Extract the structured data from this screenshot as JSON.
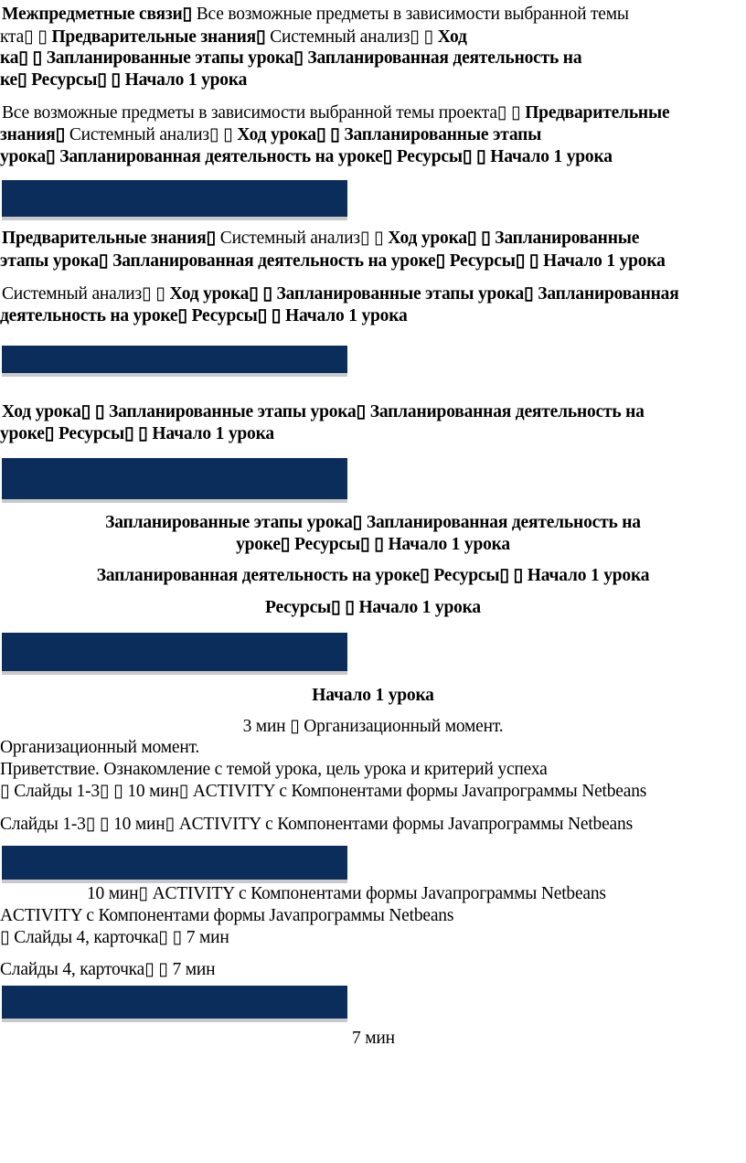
{
  "colors": {
    "banner": "#0b2d5c",
    "text": "#000000"
  },
  "lines": [
    {
      "s": [
        {
          "t": "Межпредметные связи▯",
          "b": true
        },
        {
          "t": " Все возможные предметы в зависимости выбранной темы",
          "b": false
        }
      ]
    },
    {
      "s": [
        {
          "t": "кта▯ ▯ ",
          "b": false
        },
        {
          "t": "Предварительные знания▯",
          "b": true
        },
        {
          "t": " Системный анализ▯ ▯ ",
          "b": false
        },
        {
          "t": "Ход",
          "b": true
        }
      ]
    },
    {
      "s": [
        {
          "t": "ка▯ ▯ Запланированные этапы урока▯ Запланированная деятельность на",
          "b": true
        }
      ]
    },
    {
      "s": [
        {
          "t": "ке▯ Ресурсы▯ ▯ Начало 1 урока",
          "b": true
        }
      ]
    },
    {
      "s": [
        {
          "t": "Все возможные предметы в зависимости выбранной темы проекта▯ ▯ ",
          "b": false
        },
        {
          "t": "Предварительные",
          "b": true
        }
      ]
    },
    {
      "s": [
        {
          "t": "знания▯",
          "b": true
        },
        {
          "t": " Системный анализ▯ ▯ ",
          "b": false
        },
        {
          "t": "Ход урока▯ ▯ Запланированные этапы",
          "b": true
        }
      ]
    },
    {
      "s": [
        {
          "t": "урока▯ Запланированная деятельность на уроке▯ Ресурсы▯ ▯ Начало 1 урока",
          "b": true
        }
      ]
    },
    {
      "s": [
        {
          "t": "Предварительные знания▯",
          "b": true
        },
        {
          "t": " Системный анализ▯ ▯ ",
          "b": false
        },
        {
          "t": "Ход урока▯ ▯ Запланированные",
          "b": true
        }
      ]
    },
    {
      "s": [
        {
          "t": "этапы урока▯ Запланированная деятельность на уроке▯ Ресурсы▯ ▯ Начало 1 урока",
          "b": true
        }
      ]
    },
    {
      "s": [
        {
          "t": "Системный анализ▯ ▯ ",
          "b": false
        },
        {
          "t": "Ход урока▯ ▯ Запланированные этапы урока▯ Запланированная",
          "b": true
        }
      ]
    },
    {
      "s": [
        {
          "t": "деятельность на уроке▯ Ресурсы▯ ▯ Начало 1 урока",
          "b": true
        }
      ]
    },
    {
      "s": [
        {
          "t": "Ход урока▯ ▯ Запланированные этапы урока▯ Запланированная деятельность на",
          "b": true
        }
      ]
    },
    {
      "s": [
        {
          "t": "уроке▯ Ресурсы▯ ▯ Начало 1 урока",
          "b": true
        }
      ]
    },
    {
      "s": [
        {
          "t": "Запланированные этапы урока▯ Запланированная деятельность на",
          "b": true
        }
      ]
    },
    {
      "s": [
        {
          "t": "уроке▯ Ресурсы▯ ▯ Начало 1 урока",
          "b": true
        }
      ]
    },
    {
      "s": [
        {
          "t": "Запланированная деятельность на уроке▯ Ресурсы▯ ▯ Начало 1 урока",
          "b": true
        }
      ]
    },
    {
      "s": [
        {
          "t": "Ресурсы▯ ▯ Начало 1 урока",
          "b": true
        }
      ]
    },
    {
      "s": [
        {
          "t": "Начало 1 урока",
          "b": true
        }
      ]
    },
    {
      "s": [
        {
          "t": "3 мин  ▯ Организационный  момент.",
          "b": false
        }
      ]
    },
    {
      "s": [
        {
          "t": "Организационный  момент.",
          "b": false
        }
      ]
    },
    {
      "s": [
        {
          "t": "Приветствие. Ознакомление с темой урока, цель урока и критерий успеха",
          "b": false
        }
      ]
    },
    {
      "s": [
        {
          "t": "▯ Слайды 1-3▯ ▯ 10 мин▯ ACTIVITY с Компонентами формы Javaпрограммы Netbeans",
          "b": false
        }
      ]
    },
    {
      "s": [
        {
          "t": "Слайды 1-3▯ ▯ 10 мин▯ ACTIVITY с Компонентами формы Javaпрограммы Netbeans",
          "b": false
        }
      ]
    },
    {
      "s": [
        {
          "t": "10 мин▯ ACTIVITY с Компонентами формы Javaпрограммы Netbeans",
          "b": false
        }
      ]
    },
    {
      "s": [
        {
          "t": "ACTIVITY с Компонентами формы Javaпрограммы Netbeans",
          "b": false
        }
      ]
    },
    {
      "s": [
        {
          "t": "▯ Слайды 4, карточка▯ ▯ 7 мин",
          "b": false
        }
      ]
    },
    {
      "s": [
        {
          "t": "Слайды 4, карточка▯ ▯ 7 мин",
          "b": false
        }
      ]
    },
    {
      "s": [
        {
          "t": "7 мин",
          "b": false
        }
      ]
    }
  ]
}
